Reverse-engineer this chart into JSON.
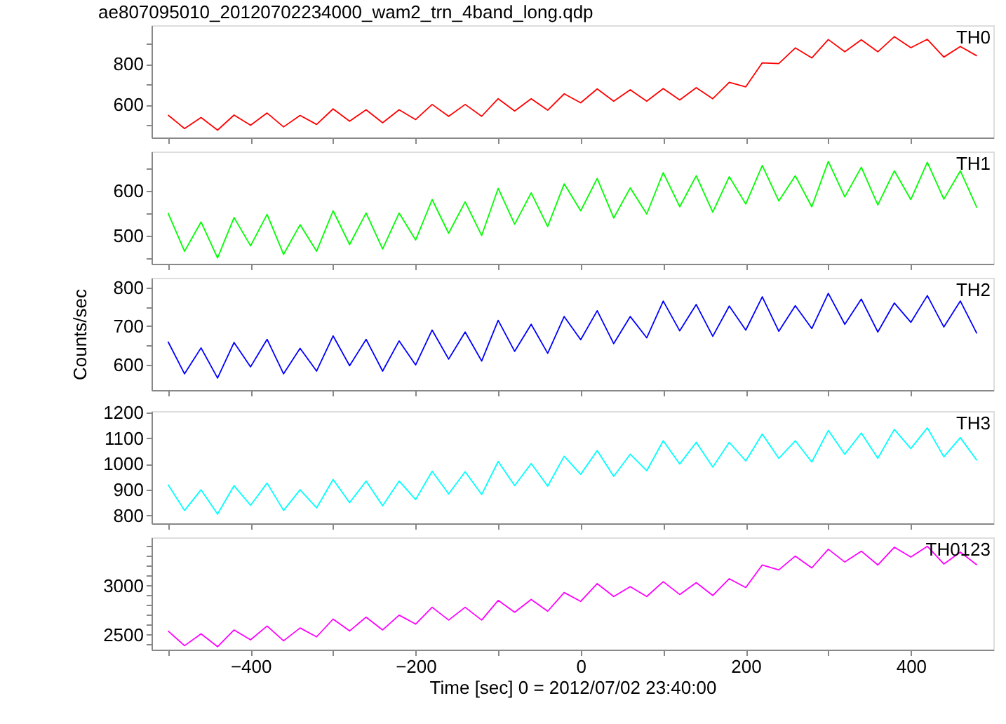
{
  "chart_data": [
    {
      "type": "line",
      "title": "ae807095010_20120702234000_wam2_trn_4band_long.qdp",
      "tick_labels": "y",
      "x": [
        -500,
        -480,
        -460,
        -440,
        -420,
        -400,
        -380,
        -360,
        -340,
        -320,
        -300,
        -280,
        -260,
        -240,
        -220,
        -200,
        -180,
        -160,
        -140,
        -120,
        -100,
        -80,
        -60,
        -40,
        -20,
        0,
        20,
        40,
        60,
        80,
        100,
        120,
        140,
        160,
        180,
        200,
        220,
        240,
        260,
        280,
        300,
        320,
        340,
        360,
        380,
        400,
        420,
        440,
        460,
        480
      ],
      "series": [
        {
          "name": "TH0",
          "color": "#ff0000",
          "values": [
            550,
            484,
            538,
            476,
            550,
            500,
            560,
            492,
            548,
            504,
            580,
            520,
            576,
            512,
            576,
            528,
            602,
            544,
            602,
            544,
            630,
            570,
            630,
            574,
            654,
            610,
            678,
            618,
            674,
            618,
            680,
            624,
            684,
            630,
            710,
            688,
            806,
            802,
            879,
            830,
            920,
            860,
            919,
            860,
            934,
            880,
            921,
            834,
            886,
            840
          ]
        }
      ],
      "xlim": [
        -520,
        500
      ],
      "xticks": [
        {
          "value": -500,
          "label": null
        },
        -400,
        {
          "value": -300,
          "label": null
        },
        -200,
        {
          "value": -100,
          "label": null
        },
        0,
        {
          "value": 100,
          "label": null
        },
        200,
        {
          "value": 300,
          "label": null
        },
        400
      ],
      "ylim": [
        440,
        990
      ],
      "yticks": [
        {
          "value": 500,
          "label": null
        },
        600,
        {
          "value": 700,
          "label": null
        },
        800,
        {
          "value": 900,
          "label": null
        }
      ]
    },
    {
      "type": "line",
      "tick_labels": "y",
      "x": [
        -500,
        -480,
        -460,
        -440,
        -420,
        -400,
        -380,
        -360,
        -340,
        -320,
        -300,
        -280,
        -260,
        -240,
        -220,
        -200,
        -180,
        -160,
        -140,
        -120,
        -100,
        -80,
        -60,
        -40,
        -20,
        0,
        20,
        40,
        60,
        80,
        100,
        120,
        140,
        160,
        180,
        200,
        220,
        240,
        260,
        280,
        300,
        320,
        340,
        360,
        380,
        400,
        420,
        440,
        460,
        480
      ],
      "series": [
        {
          "name": "TH1",
          "color": "#00ff00",
          "values": [
            550,
            465,
            530,
            450,
            540,
            477,
            547,
            458,
            524,
            465,
            555,
            480,
            550,
            470,
            550,
            490,
            580,
            505,
            575,
            500,
            605,
            525,
            595,
            520,
            615,
            555,
            627,
            539,
            606,
            548,
            640,
            564,
            633,
            552,
            631,
            570,
            656,
            577,
            633,
            564,
            665,
            586,
            652,
            568,
            644,
            580,
            663,
            581,
            644,
            562
          ]
        }
      ],
      "xlim": [
        -520,
        500
      ],
      "xticks": [
        {
          "value": -500,
          "label": null
        },
        -400,
        {
          "value": -300,
          "label": null
        },
        -200,
        {
          "value": -100,
          "label": null
        },
        0,
        {
          "value": 100,
          "label": null
        },
        200,
        {
          "value": 300,
          "label": null
        },
        400
      ],
      "ylim": [
        437,
        687
      ],
      "yticks": [
        {
          "value": 450,
          "label": null
        },
        500,
        {
          "value": 550,
          "label": null
        },
        600,
        {
          "value": 650,
          "label": null
        }
      ]
    },
    {
      "type": "line",
      "tick_labels": "y",
      "ylabel": "Counts/sec",
      "x": [
        -500,
        -480,
        -460,
        -440,
        -420,
        -400,
        -380,
        -360,
        -340,
        -320,
        -300,
        -280,
        -260,
        -240,
        -220,
        -200,
        -180,
        -160,
        -140,
        -120,
        -100,
        -80,
        -60,
        -40,
        -20,
        0,
        20,
        40,
        60,
        80,
        100,
        120,
        140,
        160,
        180,
        200,
        220,
        240,
        260,
        280,
        300,
        320,
        340,
        360,
        380,
        400,
        420,
        440,
        460,
        480
      ],
      "series": [
        {
          "name": "TH2",
          "color": "#0000ff",
          "values": [
            660,
            577,
            644,
            566,
            658,
            595,
            666,
            577,
            643,
            584,
            675,
            598,
            666,
            584,
            662,
            600,
            690,
            615,
            685,
            610,
            715,
            635,
            705,
            630,
            725,
            665,
            740,
            655,
            725,
            670,
            765,
            688,
            756,
            674,
            752,
            690,
            776,
            687,
            753,
            694,
            785,
            705,
            770,
            685,
            760,
            710,
            779,
            698,
            765,
            681
          ]
        }
      ],
      "xlim": [
        -520,
        500
      ],
      "xticks": [
        {
          "value": -500,
          "label": null
        },
        -400,
        {
          "value": -300,
          "label": null
        },
        -200,
        {
          "value": -100,
          "label": null
        },
        0,
        {
          "value": 100,
          "label": null
        },
        200,
        {
          "value": 300,
          "label": null
        },
        400
      ],
      "ylim": [
        535,
        825
      ],
      "yticks": [
        600,
        {
          "value": 650,
          "label": null
        },
        700,
        {
          "value": 750,
          "label": null
        },
        800
      ]
    },
    {
      "type": "line",
      "tick_labels": "y",
      "x": [
        -500,
        -480,
        -460,
        -440,
        -420,
        -400,
        -380,
        -360,
        -340,
        -320,
        -300,
        -280,
        -260,
        -240,
        -220,
        -200,
        -180,
        -160,
        -140,
        -120,
        -100,
        -80,
        -60,
        -40,
        -20,
        0,
        20,
        40,
        60,
        80,
        100,
        120,
        140,
        160,
        180,
        200,
        220,
        240,
        260,
        280,
        300,
        320,
        340,
        360,
        380,
        400,
        420,
        440,
        460,
        480
      ],
      "series": [
        {
          "name": "TH3",
          "color": "#00ffff",
          "values": [
            920,
            820,
            900,
            806,
            916,
            840,
            926,
            820,
            900,
            830,
            940,
            850,
            934,
            838,
            934,
            862,
            972,
            884,
            970,
            882,
            1010,
            916,
            1002,
            914,
            1030,
            960,
            1052,
            952,
            1038,
            974,
            1090,
            1000,
            1084,
            988,
            1084,
            1012,
            1116,
            1022,
            1090,
            1008,
            1130,
            1038,
            1120,
            1022,
            1134,
            1060,
            1140,
            1028,
            1102,
            1014
          ]
        }
      ],
      "xlim": [
        -520,
        500
      ],
      "xticks": [
        {
          "value": -500,
          "label": null
        },
        -400,
        {
          "value": -300,
          "label": null
        },
        -200,
        {
          "value": -100,
          "label": null
        },
        0,
        {
          "value": 100,
          "label": null
        },
        200,
        {
          "value": 300,
          "label": null
        },
        400
      ],
      "ylim": [
        770,
        1205
      ],
      "yticks": [
        800,
        900,
        1000,
        1100,
        1200
      ]
    },
    {
      "type": "line",
      "xlabel": "Time [sec] 0 = 2012/07/02 23:40:00",
      "x": [
        -500,
        -480,
        -460,
        -440,
        -420,
        -400,
        -380,
        -360,
        -340,
        -320,
        -300,
        -280,
        -260,
        -240,
        -220,
        -200,
        -180,
        -160,
        -140,
        -120,
        -100,
        -80,
        -60,
        -40,
        -20,
        0,
        20,
        40,
        60,
        80,
        100,
        120,
        140,
        160,
        180,
        200,
        220,
        240,
        260,
        280,
        300,
        320,
        340,
        360,
        380,
        400,
        420,
        440,
        460,
        480
      ],
      "series": [
        {
          "name": "TH0123",
          "color": "#ff00ff",
          "values": [
            2540,
            2390,
            2510,
            2380,
            2550,
            2450,
            2590,
            2440,
            2570,
            2480,
            2660,
            2540,
            2680,
            2550,
            2700,
            2610,
            2780,
            2650,
            2780,
            2650,
            2850,
            2730,
            2860,
            2740,
            2930,
            2840,
            3020,
            2890,
            2990,
            2890,
            3040,
            2910,
            3030,
            2900,
            3070,
            2980,
            3210,
            3160,
            3300,
            3180,
            3370,
            3240,
            3350,
            3210,
            3390,
            3290,
            3400,
            3220,
            3340,
            3210
          ]
        }
      ],
      "xlim": [
        -520,
        500
      ],
      "xticks": [
        {
          "value": -500,
          "label": null
        },
        -400,
        {
          "value": -300,
          "label": null
        },
        -200,
        {
          "value": -100,
          "label": null
        },
        0,
        {
          "value": 100,
          "label": null
        },
        200,
        {
          "value": 300,
          "label": null
        },
        400
      ],
      "ylim": [
        2350,
        3490
      ],
      "yticks": [
        {
          "value": 2400,
          "label": null
        },
        2500,
        {
          "value": 2600,
          "label": null
        },
        {
          "value": 2700,
          "label": null
        },
        {
          "value": 2800,
          "label": null
        },
        {
          "value": 2900,
          "label": null
        },
        3000,
        {
          "value": 3100,
          "label": null
        },
        {
          "value": 3200,
          "label": null
        },
        {
          "value": 3300,
          "label": null
        },
        {
          "value": 3400,
          "label": null
        }
      ]
    }
  ]
}
